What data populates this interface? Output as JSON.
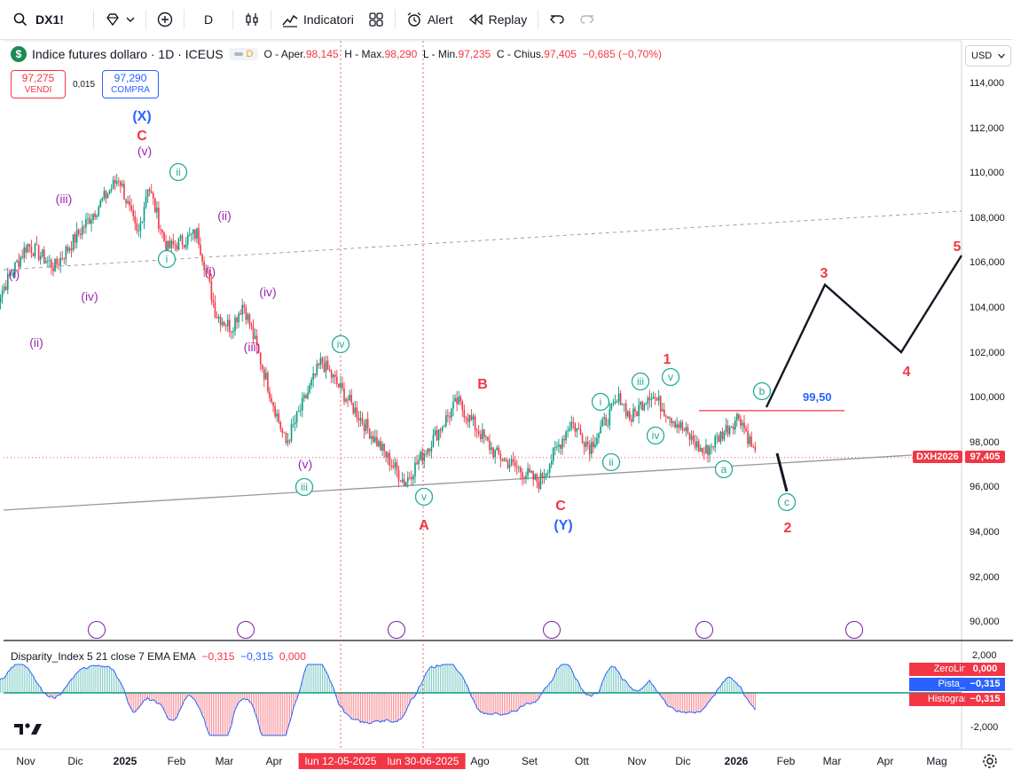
{
  "toolbar": {
    "symbol": "DX1!",
    "interval": "D",
    "indicators_label": "Indicatori",
    "alert_label": "Alert",
    "replay_label": "Replay"
  },
  "legend": {
    "title": "Indice futures dollaro · 1D · ICEUS",
    "logo_letter": "$",
    "status_letter": "D",
    "open_label": "O - Aper.",
    "open": "98,145",
    "high_label": "H - Max.",
    "high": "98,290",
    "low_label": "L - Min.",
    "low": "97,235",
    "close_label": "C - Chius.",
    "close": "97,405",
    "change": "−0,685 (−0,70%)"
  },
  "trade": {
    "sell_price": "97,275",
    "sell_label": "VENDI",
    "spread": "0,015",
    "buy_price": "97,290",
    "buy_label": "COMPRA"
  },
  "currency": "USD",
  "price_axis": [
    "114,000",
    "112,000",
    "110,000",
    "108,000",
    "106,000",
    "104,000",
    "102,000",
    "100,000",
    "98,000",
    "96,000",
    "94,000",
    "92,000",
    "90,000"
  ],
  "last_price": {
    "symbol_tag": "DXH2026",
    "value": "97,405"
  },
  "level_line": {
    "value_text": "99,50"
  },
  "indicator": {
    "name": "Disparity_Index 5 21 close 7 EMA EMA",
    "v1": "−0,315",
    "v2": "−0,315",
    "v3": "0,000",
    "axis": [
      "2,000",
      "-2,000"
    ],
    "tags": [
      {
        "label": "ZeroLine",
        "value": "0,000",
        "color": "#f23645"
      },
      {
        "label": "Pista_C",
        "value": "−0,315",
        "color": "#2962ff"
      },
      {
        "label": "Histogram",
        "value": "−0,315",
        "color": "#f23645"
      }
    ]
  },
  "time_axis": {
    "labels": [
      "Nov",
      "Dic",
      "2025",
      "Feb",
      "Mar",
      "Apr",
      "Ago",
      "Set",
      "Ott",
      "Nov",
      "Dic",
      "2026",
      "Feb",
      "Mar",
      "Apr",
      "Mag"
    ],
    "bold": [
      "2025",
      "2026"
    ],
    "highlight": [
      "lun 12-05-2025",
      "lun 30-06-2025"
    ]
  },
  "wave_labels": [
    {
      "text": "(X)",
      "color": "#2962ff"
    },
    {
      "text": "C",
      "color": "#f23645"
    },
    {
      "text": "(v)",
      "color": "#9c27b0"
    },
    {
      "text": "(iii)",
      "color": "#9c27b0"
    },
    {
      "text": "(i)",
      "color": "#9c27b0"
    },
    {
      "text": "(ii)",
      "color": "#9c27b0"
    },
    {
      "text": "(iv)",
      "color": "#9c27b0"
    },
    {
      "text": "(ii)",
      "color": "#9c27b0"
    },
    {
      "text": "(i)",
      "color": "#9c27b0"
    },
    {
      "text": "(iv)",
      "color": "#9c27b0"
    },
    {
      "text": "(iii)",
      "color": "#9c27b0"
    },
    {
      "text": "(v)",
      "color": "#9c27b0"
    },
    {
      "text": "B",
      "color": "#f23645"
    },
    {
      "text": "A",
      "color": "#f23645"
    },
    {
      "text": "C",
      "color": "#f23645"
    },
    {
      "text": "(Y)",
      "color": "#2962ff"
    },
    {
      "text": "1",
      "color": "#f23645"
    },
    {
      "text": "2",
      "color": "#f23645"
    },
    {
      "text": "3",
      "color": "#f23645"
    },
    {
      "text": "4",
      "color": "#f23645"
    },
    {
      "text": "5",
      "color": "#f23645"
    }
  ],
  "circle_labels": [
    "ii",
    "i",
    "iv",
    "iii",
    "v",
    "i",
    "ii",
    "iii",
    "iv",
    "v",
    "a",
    "b",
    "c"
  ],
  "colors": {
    "up": "#089981",
    "down": "#f23645",
    "accent": "#2962ff",
    "purple": "#7b1fa2",
    "teal": "#22ab94"
  },
  "chart_data": {
    "type": "candlestick",
    "symbol": "DXH2026",
    "timeframe": "1D",
    "ylim": [
      89,
      115
    ],
    "path_approx": [
      {
        "x": "2024-11-01",
        "y": 104.3
      },
      {
        "x": "2024-11-20",
        "y": 106.9
      },
      {
        "x": "2024-12-06",
        "y": 105.9
      },
      {
        "x": "2025-01-13",
        "y": 109.9
      },
      {
        "x": "2025-01-24",
        "y": 107.2
      },
      {
        "x": "2025-01-30",
        "y": 109.6
      },
      {
        "x": "2025-02-10",
        "y": 106.7
      },
      {
        "x": "2025-02-28",
        "y": 107.4
      },
      {
        "x": "2025-03-11",
        "y": 103.8
      },
      {
        "x": "2025-03-20",
        "y": 103.2
      },
      {
        "x": "2025-03-27",
        "y": 104.3
      },
      {
        "x": "2025-04-21",
        "y": 98.0
      },
      {
        "x": "2025-05-12",
        "y": 101.7
      },
      {
        "x": "2025-06-30",
        "y": 96.3
      },
      {
        "x": "2025-07-31",
        "y": 99.9
      },
      {
        "x": "2025-08-22",
        "y": 97.6
      },
      {
        "x": "2025-09-17",
        "y": 96.3
      },
      {
        "x": "2025-10-06",
        "y": 99.0
      },
      {
        "x": "2025-10-17",
        "y": 97.9
      },
      {
        "x": "2025-11-04",
        "y": 100.1
      },
      {
        "x": "2025-11-10",
        "y": 99.1
      },
      {
        "x": "2025-11-21",
        "y": 100.3
      },
      {
        "x": "2025-12-09",
        "y": 98.8
      },
      {
        "x": "2025-12-23",
        "y": 97.6
      },
      {
        "x": "2026-01-13",
        "y": 99.3
      },
      {
        "x": "2026-01-23",
        "y": 97.4
      }
    ],
    "projection": [
      {
        "label": "2",
        "x": "2026-01-28",
        "y": 95.9
      },
      {
        "label": "3",
        "x": "2026-02-22",
        "y": 105.1
      },
      {
        "label": "4",
        "x": "2026-04-01",
        "y": 102.0
      },
      {
        "label": "5",
        "x": "2026-05-16",
        "y": 106.3
      }
    ],
    "levels": [
      {
        "name": "resistance",
        "value": 99.5
      }
    ],
    "last_close": 97.405,
    "indicator": {
      "name": "Disparity_Index 5 21 close 7 EMA EMA",
      "ylim": [
        -2.6,
        2.4
      ],
      "last": -0.315
    }
  }
}
